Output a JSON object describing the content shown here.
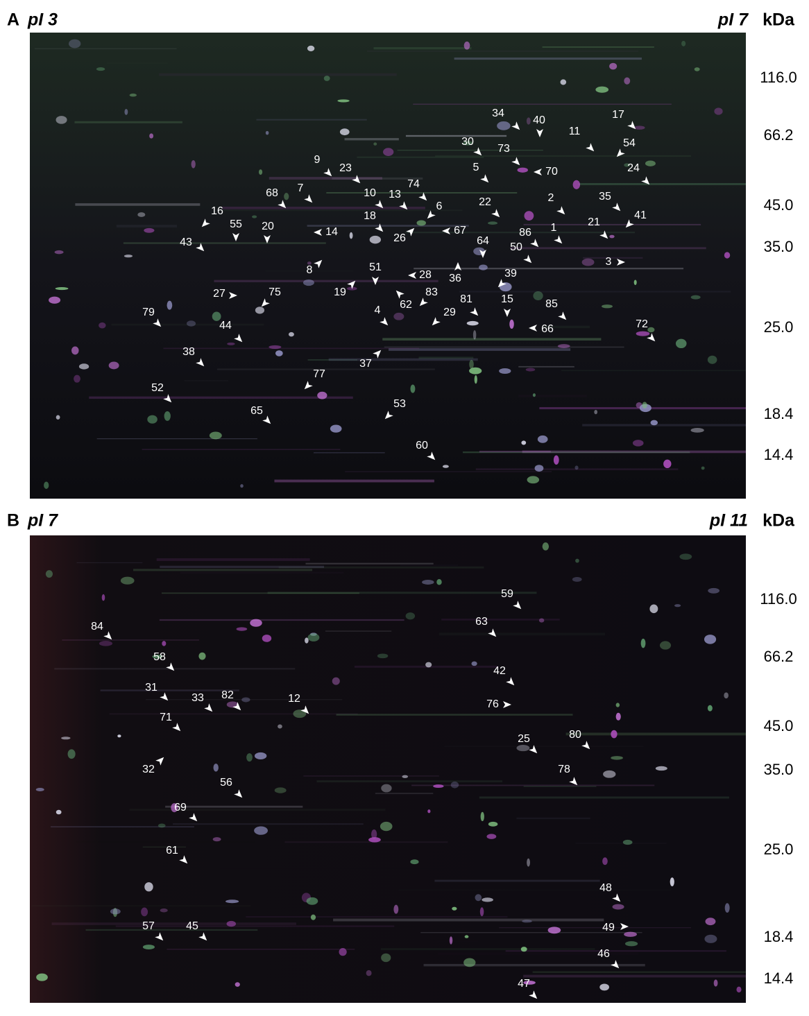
{
  "panels": [
    {
      "letter": "A",
      "pi_left": "pI 3",
      "pi_right": "pI 7",
      "unit": "kDa",
      "mw_markers": [
        "116.0",
        "66.2",
        "45.0",
        "35.0",
        "25.0",
        "18.4",
        "14.4"
      ],
      "spots": [
        "34",
        "40",
        "11",
        "17",
        "54",
        "30",
        "73",
        "70",
        "5",
        "9",
        "23",
        "24",
        "10",
        "13",
        "74",
        "6",
        "7",
        "68",
        "22",
        "2",
        "35",
        "41",
        "16",
        "55",
        "20",
        "14",
        "18",
        "26",
        "67",
        "43",
        "86",
        "1",
        "21",
        "64",
        "50",
        "3",
        "8",
        "51",
        "36",
        "28",
        "39",
        "19",
        "62",
        "83",
        "27",
        "75",
        "81",
        "15",
        "85",
        "4",
        "29",
        "66",
        "79",
        "44",
        "72",
        "37",
        "38",
        "77",
        "52",
        "65",
        "53",
        "60"
      ]
    },
    {
      "letter": "B",
      "pi_left": "pI 7",
      "pi_right": "pI 11",
      "unit": "kDa",
      "mw_markers": [
        "116.0",
        "66.2",
        "45.0",
        "35.0",
        "25.0",
        "18.4",
        "14.4"
      ],
      "spots": [
        "59",
        "84",
        "63",
        "58",
        "42",
        "31",
        "33",
        "82",
        "12",
        "76",
        "71",
        "25",
        "80",
        "32",
        "78",
        "56",
        "69",
        "61",
        "48",
        "57",
        "45",
        "49",
        "46",
        "47"
      ]
    }
  ]
}
